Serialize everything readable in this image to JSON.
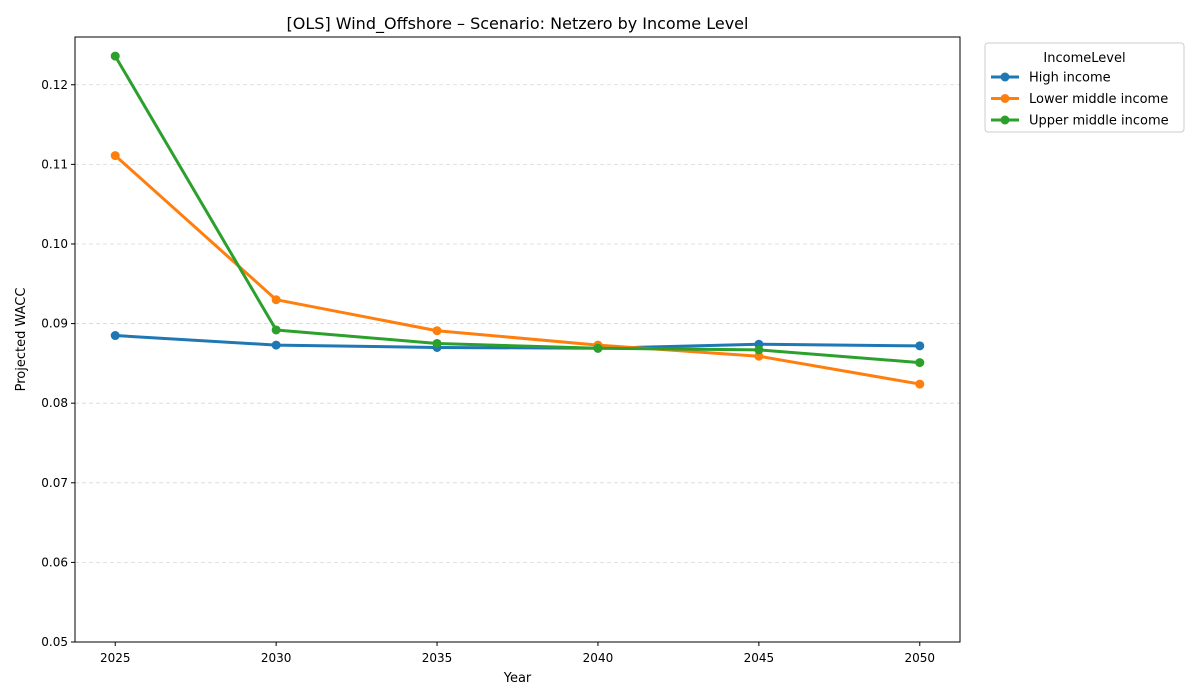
{
  "chart_data": {
    "type": "line",
    "title": "[OLS] Wind_Offshore – Scenario: Netzero by Income Level",
    "xlabel": "Year",
    "ylabel": "Projected WACC",
    "x": [
      2025,
      2030,
      2035,
      2040,
      2045,
      2050
    ],
    "x_tick_labels": [
      "2025",
      "2030",
      "2035",
      "2040",
      "2045",
      "2050"
    ],
    "ylim": [
      0.05,
      0.126
    ],
    "y_ticks": [
      0.05,
      0.06,
      0.07,
      0.08,
      0.09,
      0.1,
      0.11,
      0.12
    ],
    "y_tick_labels": [
      "0.05",
      "0.06",
      "0.07",
      "0.08",
      "0.09",
      "0.10",
      "0.11",
      "0.12"
    ],
    "grid": "horizontal dashed",
    "legend_title": "IncomeLevel",
    "legend_position": "outside top-right",
    "series": [
      {
        "name": "High income",
        "color": "#1f77b4",
        "values": [
          0.0885,
          0.0873,
          0.087,
          0.0869,
          0.0874,
          0.0872
        ]
      },
      {
        "name": "Lower middle income",
        "color": "#ff7f0e",
        "values": [
          0.1111,
          0.093,
          0.0891,
          0.0873,
          0.0859,
          0.0824
        ]
      },
      {
        "name": "Upper middle income",
        "color": "#2ca02c",
        "values": [
          0.1236,
          0.0892,
          0.0875,
          0.0869,
          0.0867,
          0.0851
        ]
      }
    ]
  }
}
